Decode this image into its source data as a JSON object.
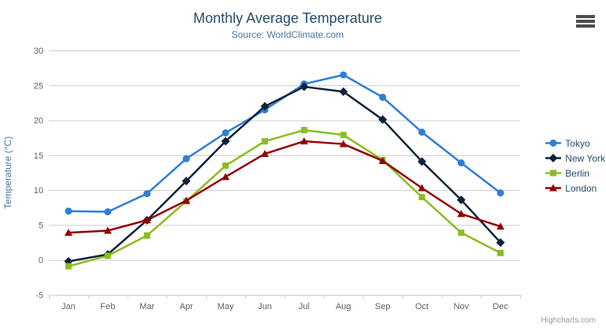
{
  "header": {
    "title": "Monthly Average Temperature",
    "subtitle": "Source: WorldClimate.com"
  },
  "menu": {
    "icon": "hamburger-icon"
  },
  "credit_label": "Highcharts.com",
  "chart_data": {
    "type": "line",
    "title": "Monthly Average Temperature",
    "subtitle": "Source: WorldClimate.com",
    "xlabel": "",
    "ylabel": "Temperature (°C)",
    "categories": [
      "Jan",
      "Feb",
      "Mar",
      "Apr",
      "May",
      "Jun",
      "Jul",
      "Aug",
      "Sep",
      "Oct",
      "Nov",
      "Dec"
    ],
    "ylim": [
      -5,
      30
    ],
    "yticks": [
      -5,
      0,
      5,
      10,
      15,
      20,
      25,
      30
    ],
    "grid": true,
    "legend_position": "right",
    "colors": {
      "grid": "#cccccc",
      "axis_line": "#c0d0e0",
      "tick": "#c0d0e0",
      "label": "#606060",
      "title": "#274b6d",
      "subtitle": "#4d759e"
    },
    "series": [
      {
        "name": "Tokyo",
        "color": "#2f7ed8",
        "marker": "circle",
        "values": [
          7.0,
          6.9,
          9.5,
          14.5,
          18.2,
          21.5,
          25.2,
          26.5,
          23.3,
          18.3,
          13.9,
          9.6
        ]
      },
      {
        "name": "New York",
        "color": "#0d233a",
        "marker": "diamond",
        "values": [
          -0.2,
          0.8,
          5.7,
          11.3,
          17.0,
          22.0,
          24.8,
          24.1,
          20.1,
          14.1,
          8.6,
          2.5
        ]
      },
      {
        "name": "Berlin",
        "color": "#8bbc21",
        "marker": "square",
        "values": [
          -0.9,
          0.6,
          3.5,
          8.4,
          13.5,
          17.0,
          18.6,
          17.9,
          14.3,
          9.0,
          3.9,
          1.0
        ]
      },
      {
        "name": "London",
        "color": "#910000",
        "marker": "triangle",
        "values": [
          3.9,
          4.2,
          5.7,
          8.5,
          11.9,
          15.2,
          17.0,
          16.6,
          14.2,
          10.3,
          6.6,
          4.8
        ]
      }
    ]
  }
}
